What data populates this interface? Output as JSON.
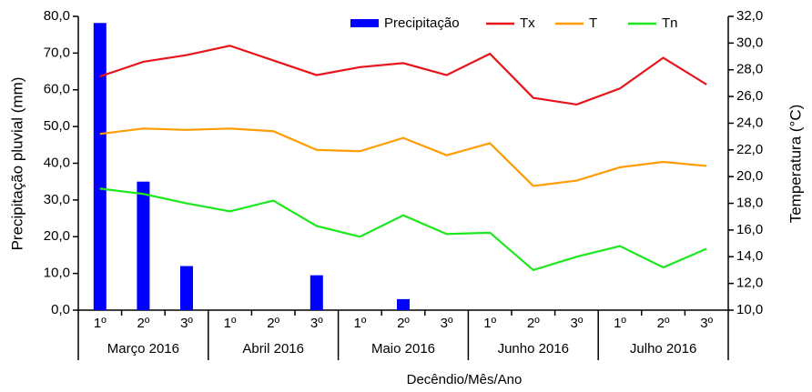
{
  "chart_data": {
    "type": "bar-line",
    "x_label": "Decêndio/Mês/Ano",
    "y_label": "Precipitação pluvial (mm)",
    "y2_label": "Temperatura (°C)",
    "categories": [
      "1º",
      "2º",
      "3º",
      "1º",
      "2º",
      "3º",
      "1º",
      "2º",
      "3º",
      "1º",
      "2º",
      "3º",
      "1º",
      "2º",
      "3º"
    ],
    "groups": [
      "Março 2016",
      "Abril 2016",
      "Maio 2016",
      "Junho 2016",
      "Julho 2016"
    ],
    "ylim": [
      0,
      80
    ],
    "yticks": [
      {
        "value": 0,
        "label": "0,0"
      },
      {
        "value": 10,
        "label": "10,0"
      },
      {
        "value": 20,
        "label": "20,0"
      },
      {
        "value": 30,
        "label": "30,0"
      },
      {
        "value": 40,
        "label": "40,0"
      },
      {
        "value": 50,
        "label": "50,0"
      },
      {
        "value": 60,
        "label": "60,0"
      },
      {
        "value": 70,
        "label": "70,0"
      },
      {
        "value": 80,
        "label": "80,0"
      }
    ],
    "y2lim": [
      10,
      32
    ],
    "y2ticks": [
      {
        "value": 10,
        "label": "10,0"
      },
      {
        "value": 12,
        "label": "12,0"
      },
      {
        "value": 14,
        "label": "14,0"
      },
      {
        "value": 16,
        "label": "16,0"
      },
      {
        "value": 18,
        "label": "18,0"
      },
      {
        "value": 20,
        "label": "20,0"
      },
      {
        "value": 22,
        "label": "22,0"
      },
      {
        "value": 24,
        "label": "24,0"
      },
      {
        "value": 26,
        "label": "26,0"
      },
      {
        "value": 28,
        "label": "28,0"
      },
      {
        "value": 30,
        "label": "30,0"
      },
      {
        "value": 32,
        "label": "32,0"
      }
    ],
    "series": [
      {
        "name": "Precipitação",
        "type": "bar",
        "color": "#0000ff",
        "values": [
          78.2,
          35,
          12,
          0,
          0,
          9.5,
          0,
          3,
          0,
          0,
          0,
          0,
          0,
          0,
          0
        ]
      },
      {
        "name": "Tx",
        "type": "line",
        "axis": "y2",
        "color": "#e8141b",
        "values": [
          27.5,
          28.6,
          29.1,
          29.8,
          28.7,
          27.6,
          28.2,
          28.5,
          27.6,
          29.2,
          25.9,
          25.4,
          26.6,
          28.9,
          26.9
        ]
      },
      {
        "name": "T",
        "type": "line",
        "axis": "y2",
        "color": "#ff9c00",
        "values": [
          23.2,
          23.6,
          23.5,
          23.6,
          23.4,
          22.0,
          21.9,
          22.9,
          21.6,
          22.5,
          19.3,
          19.7,
          20.7,
          21.1,
          20.8
        ]
      },
      {
        "name": "Tn",
        "type": "line",
        "axis": "y2",
        "color": "#1de81d",
        "values": [
          19.1,
          18.7,
          18.0,
          17.4,
          18.2,
          16.3,
          15.5,
          17.1,
          15.7,
          15.8,
          13.0,
          14.0,
          14.8,
          13.2,
          14.6
        ]
      }
    ]
  }
}
